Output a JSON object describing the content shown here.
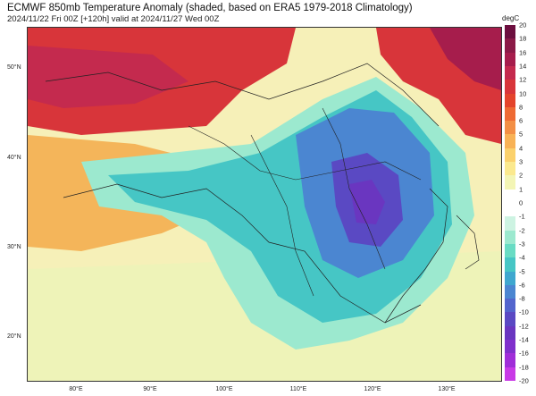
{
  "header": {
    "title": "ECMWF 850mb Temperature Anomaly (shaded, based on ERA5 1979-2018 Climatology)",
    "subtitle": "2024/11/22 Fri 00Z [+120h] valid at 2024/11/27 Wed 00Z"
  },
  "map": {
    "lat_labels": [
      "50°N",
      "40°N",
      "30°N",
      "20°N"
    ],
    "lon_labels": [
      "80°E",
      "90°E",
      "100°E",
      "110°E",
      "120°E",
      "130°E"
    ]
  },
  "colorbar": {
    "unit": "degC",
    "levels": [
      20,
      18,
      16,
      14,
      12,
      10,
      8,
      6,
      5,
      4,
      3,
      2,
      1,
      0,
      -1,
      -2,
      -3,
      -4,
      -5,
      -6,
      -8,
      -10,
      -12,
      -14,
      -16,
      -18,
      -20
    ],
    "colors": [
      "#6d0f3f",
      "#8b1a47",
      "#a61d4c",
      "#c42a4e",
      "#d8353a",
      "#e4442c",
      "#ee6a34",
      "#f38f45",
      "#f8b256",
      "#fbd16c",
      "#fbe98e",
      "#f3f5b5",
      "#ffffff",
      "#ffffff",
      "#cdf3e2",
      "#9ce9cf",
      "#69dcc4",
      "#46c6c5",
      "#3fa7cf",
      "#4b86d1",
      "#5365cd",
      "#5a49c3",
      "#6a36c0",
      "#8030cc",
      "#a02ed8",
      "#c93ae6"
    ]
  }
}
